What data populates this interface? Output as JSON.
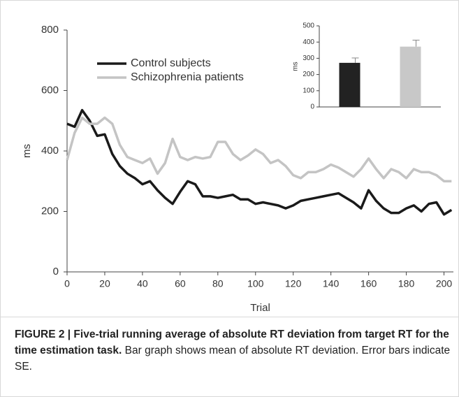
{
  "chart_data": [
    {
      "type": "line",
      "xlabel": "Trial",
      "ylabel": "ms",
      "x": [
        0,
        4,
        8,
        12,
        16,
        20,
        24,
        28,
        32,
        36,
        40,
        44,
        48,
        52,
        56,
        60,
        64,
        68,
        72,
        76,
        80,
        84,
        88,
        92,
        96,
        100,
        104,
        108,
        112,
        116,
        120,
        124,
        128,
        132,
        136,
        140,
        144,
        148,
        152,
        156,
        160,
        164,
        168,
        172,
        176,
        180,
        184,
        188,
        192,
        196,
        200,
        204
      ],
      "series": [
        {
          "name": "Control subjects",
          "color": "#1a1a1a",
          "values": [
            490,
            480,
            535,
            500,
            450,
            455,
            390,
            350,
            325,
            310,
            290,
            300,
            270,
            245,
            225,
            265,
            300,
            290,
            250,
            250,
            245,
            250,
            255,
            240,
            240,
            225,
            230,
            225,
            220,
            210,
            220,
            235,
            240,
            245,
            250,
            255,
            260,
            245,
            230,
            210,
            270,
            235,
            210,
            195,
            195,
            210,
            220,
            200,
            225,
            230,
            190,
            205
          ]
        },
        {
          "name": "Schizophrenia patients",
          "color": "#c4c4c4",
          "values": [
            370,
            460,
            510,
            490,
            490,
            510,
            490,
            420,
            380,
            370,
            360,
            375,
            325,
            360,
            440,
            380,
            370,
            380,
            375,
            380,
            430,
            430,
            390,
            370,
            385,
            405,
            390,
            360,
            370,
            350,
            320,
            310,
            330,
            330,
            340,
            355,
            345,
            330,
            315,
            340,
            375,
            340,
            310,
            340,
            330,
            310,
            340,
            330,
            330,
            320,
            300,
            300
          ]
        }
      ],
      "xlim": [
        0,
        205
      ],
      "xticks": [
        0,
        20,
        40,
        60,
        80,
        100,
        120,
        140,
        160,
        180,
        200
      ],
      "ylim": [
        0,
        800
      ],
      "yticks": [
        0,
        200,
        400,
        600,
        800
      ],
      "legend": "upper-left"
    },
    {
      "type": "bar",
      "ylabel": "ms",
      "categories": [
        null,
        null
      ],
      "values": [
        272,
        372
      ],
      "errors": [
        30,
        40
      ],
      "colors": [
        "#222222",
        "#c8c8c8"
      ],
      "ylim": [
        0,
        500
      ],
      "yticks": [
        0,
        100,
        200,
        300,
        400,
        500
      ]
    }
  ],
  "caption": {
    "label": "FIGURE 2 | Five-trial running average of absolute RT deviation from target RT for the time estimation task.",
    "text": "Bar graph shows mean of absolute RT deviation. Error bars indicate SE."
  }
}
